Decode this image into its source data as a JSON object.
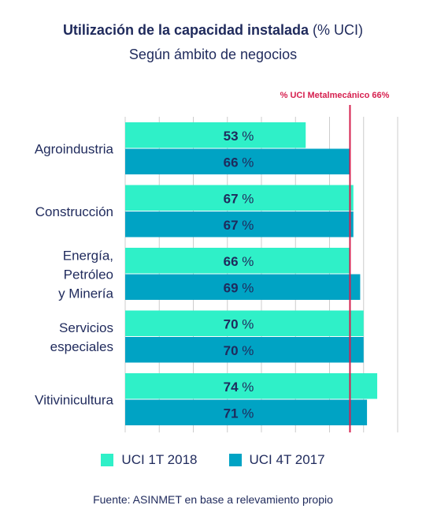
{
  "title": {
    "bold": "Utilización de la capacidad instalada",
    "rest": " (% UCI)",
    "subtitle": "Según ámbito de negocios"
  },
  "colors": {
    "series1": "#2ff0c8",
    "series2": "#00a3c4",
    "reference": "#d6204f",
    "grid": "#cccccc"
  },
  "chart_data": {
    "type": "bar",
    "orientation": "horizontal",
    "categories": [
      [
        "Agroindustria"
      ],
      [
        "Construcción"
      ],
      [
        "Energía,",
        "Petróleo",
        "y Minería"
      ],
      [
        "Servicios",
        "especiales"
      ],
      [
        "Vitivinicultura"
      ]
    ],
    "series": [
      {
        "name": "UCI 1T 2018",
        "values": [
          53,
          67,
          66,
          70,
          74
        ]
      },
      {
        "name": "UCI 4T 2017",
        "values": [
          66,
          67,
          69,
          70,
          71
        ]
      }
    ],
    "value_suffix": " %",
    "xlim": [
      0,
      80
    ],
    "grid": true,
    "reference_line": {
      "value": 66,
      "label": "% UCI Metalmecánico 66%"
    },
    "legend_position": "bottom"
  },
  "source": "Fuente: ASINMET en base a relevamiento propio"
}
